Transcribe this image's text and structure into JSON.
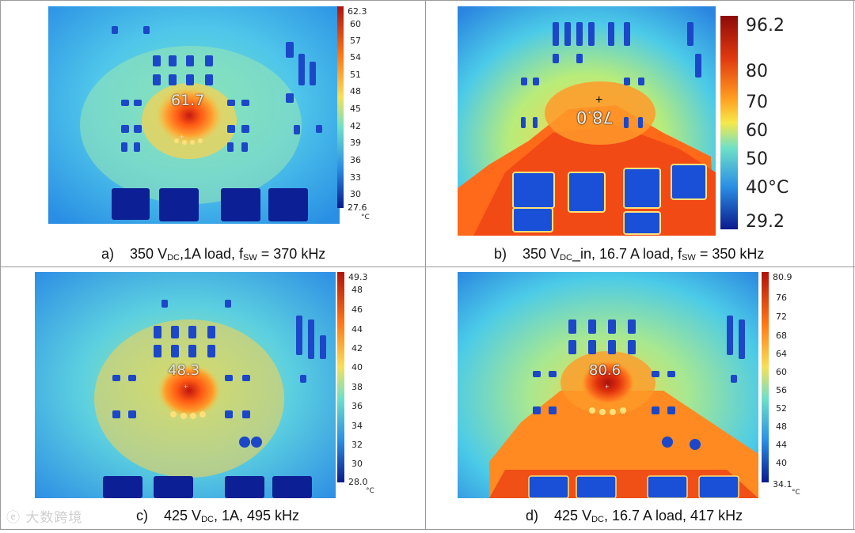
{
  "panels": [
    {
      "id": "a",
      "spot_value": "61.7",
      "scale_max": "62.3",
      "scale_ticks": [
        "60",
        "57",
        "54",
        "51",
        "48",
        "45",
        "42",
        "39",
        "36",
        "33",
        "30"
      ],
      "scale_min": "27.6",
      "unit": "°C",
      "caption": {
        "label": "a)",
        "voltage": "350 V",
        "sub": "DC",
        "rest": ",1A load, f",
        "fsub": "SW",
        "tail": " = 370 kHz"
      }
    },
    {
      "id": "b",
      "spot_value": "78.0",
      "scale_max": "96.2",
      "scale_ticks": [
        "80",
        "70",
        "60",
        "50",
        "40°C"
      ],
      "scale_min": "29.2",
      "unit": "",
      "caption": {
        "label": "b)",
        "voltage": "350 V",
        "sub": "DC",
        "rest": "_in, 16.7 A load,  f",
        "fsub": "SW",
        "tail": " = 350 kHz"
      }
    },
    {
      "id": "c",
      "spot_value": "48.3",
      "scale_max": "49.3",
      "scale_ticks": [
        "48",
        "46",
        "44",
        "42",
        "40",
        "38",
        "36",
        "34",
        "32",
        "30"
      ],
      "scale_min": "28.0",
      "unit": "°C",
      "caption": {
        "label": "c)",
        "voltage": "425 V",
        "sub": "DC",
        "rest": ", 1A, 495 kHz",
        "fsub": "",
        "tail": ""
      }
    },
    {
      "id": "d",
      "spot_value": "80.6",
      "scale_max": "80.9",
      "scale_ticks": [
        "76",
        "72",
        "68",
        "64",
        "60",
        "56",
        "52",
        "48",
        "44",
        "40"
      ],
      "scale_min": "34.1",
      "unit": "°C",
      "caption": {
        "label": "d)",
        "voltage": "425 V",
        "sub": "DC",
        "rest": ", 16.7 A load, 417 kHz",
        "fsub": "",
        "tail": ""
      }
    }
  ],
  "watermark": "大数跨境",
  "colors": {
    "cold": "#0b1a8c",
    "cool": "#2f8fe8",
    "mid": "#5fd0e0",
    "warm": "#ff8a1e",
    "hot": "#c0150e"
  }
}
